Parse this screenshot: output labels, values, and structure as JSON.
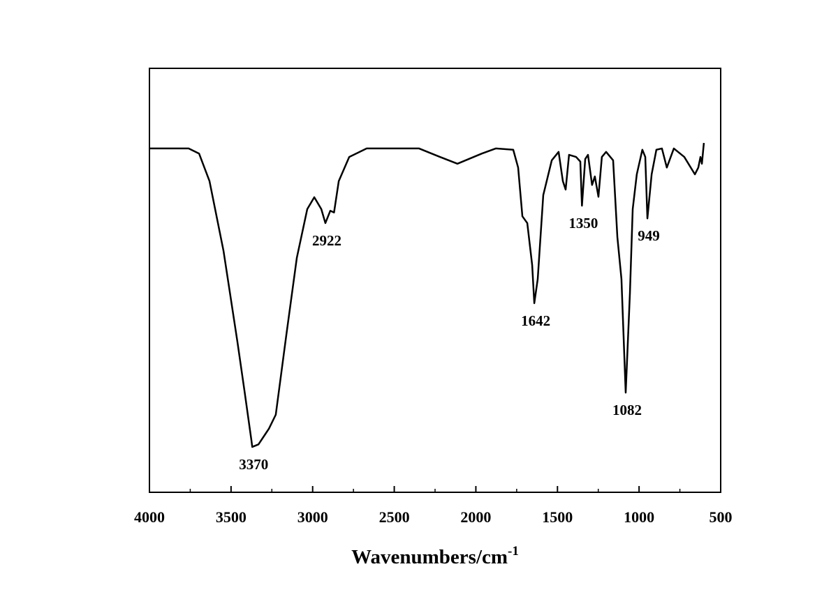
{
  "chart_data": {
    "type": "line",
    "xlabel": "Wavenumbers/cm",
    "xlabel_sup": "-1",
    "xlim": [
      4000,
      500
    ],
    "ylim": [
      0,
      100
    ],
    "xticks": [
      4000,
      3500,
      3000,
      2500,
      2000,
      1500,
      1000,
      500
    ],
    "xminorticks": [
      3750,
      3250,
      2750,
      2250,
      1750,
      1250,
      750
    ],
    "color": "#000000",
    "peaks": [
      3370,
      2922,
      1642,
      1350,
      1082,
      949
    ],
    "x": [
      4000,
      3760,
      3696,
      3632,
      3546,
      3461,
      3418,
      3375,
      3370,
      3332,
      3268,
      3226,
      3161,
      3097,
      3033,
      2990,
      2947,
      2922,
      2892,
      2869,
      2840,
      2776,
      2669,
      2348,
      2220,
      2113,
      1963,
      1878,
      1771,
      1741,
      1715,
      1685,
      1655,
      1642,
      1621,
      1587,
      1535,
      1493,
      1467,
      1450,
      1429,
      1386,
      1360,
      1350,
      1330,
      1313,
      1288,
      1271,
      1249,
      1228,
      1202,
      1159,
      1133,
      1108,
      1082,
      1056,
      1039,
      1014,
      980,
      962,
      949,
      923,
      894,
      860,
      830,
      787,
      723,
      658,
      637,
      624,
      615,
      603
    ],
    "values": [
      81.1,
      81.1,
      79.9,
      73.4,
      56.9,
      35.5,
      24.0,
      12.2,
      10.7,
      11.3,
      15.0,
      18.3,
      37.2,
      55.3,
      66.8,
      69.6,
      66.8,
      63.5,
      66.4,
      66.0,
      73.4,
      79.1,
      81.1,
      81.1,
      79.1,
      77.5,
      79.9,
      81.1,
      80.8,
      76.6,
      65.1,
      63.5,
      53.6,
      44.6,
      50.3,
      70.1,
      78.3,
      80.3,
      73.4,
      71.4,
      79.6,
      79.1,
      78.0,
      67.6,
      78.6,
      79.6,
      72.5,
      74.5,
      69.7,
      79.1,
      80.3,
      78.3,
      60.2,
      50.3,
      23.5,
      47.0,
      66.8,
      75.0,
      80.8,
      79.1,
      64.6,
      75.0,
      80.8,
      81.1,
      76.6,
      81.1,
      79.1,
      75.0,
      76.6,
      79.1,
      77.5,
      82.4
    ]
  }
}
